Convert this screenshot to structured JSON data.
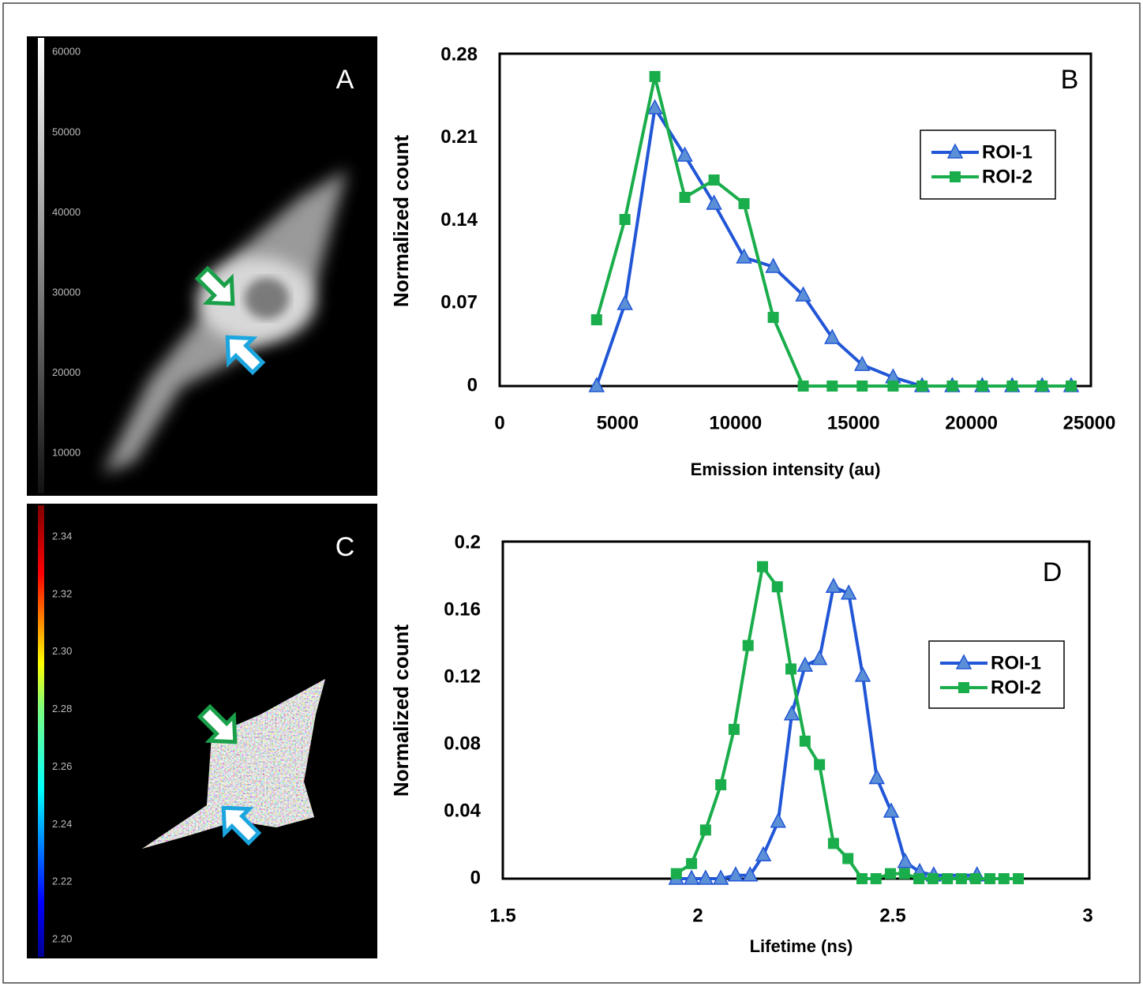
{
  "image_panels": [
    {
      "label": "A",
      "colorbar": {
        "lim": [
          5000,
          61800
        ],
        "ticks": [
          10000,
          20000,
          30000,
          40000,
          50000,
          60000
        ]
      }
    },
    {
      "label": "C",
      "colorbar": {
        "lim": [
          2.194,
          2.351
        ],
        "ticks": [
          {
            "value": 2.2,
            "label": "2.20"
          },
          2.22,
          2.24,
          2.26,
          2.28,
          {
            "value": 2.3,
            "label": "2.30"
          },
          2.32,
          2.34
        ]
      }
    }
  ],
  "chart_data": [
    {
      "type": "line",
      "panel_label": "B",
      "xlabel": "Emission intensity (au)",
      "ylabel": "Normalized count",
      "x": [
        4110,
        5310,
        6580,
        7850,
        9090,
        10360,
        11600,
        12870,
        14100,
        15370,
        16680,
        17910,
        19190,
        20460,
        21730,
        23000,
        24230
      ],
      "series": [
        {
          "name": "ROI-1",
          "color": "#2156d6",
          "marker": "triangle",
          "marker_fill": "#5b8fd6",
          "values": [
            0,
            0.0695,
            0.2352,
            0.1951,
            0.1544,
            0.1089,
            0.1009,
            0.0768,
            0.0408,
            0.018,
            0.0074,
            0,
            0,
            0,
            0,
            0,
            0
          ]
        },
        {
          "name": "ROI-2",
          "color": "#1aad4b",
          "marker": "square",
          "marker_fill": "#1aad4b",
          "values": [
            0.0561,
            0.141,
            0.262,
            0.1597,
            0.1744,
            0.1544,
            0.0581,
            0,
            0,
            0,
            0,
            0,
            0,
            0,
            0,
            0,
            0
          ]
        }
      ],
      "xlim": [
        0,
        25000
      ],
      "ylim": [
        0,
        0.28
      ],
      "xticks": [
        0,
        5000,
        10000,
        15000,
        20000,
        25000
      ],
      "yticks": [
        0,
        0.07,
        0.14,
        0.21,
        0.28
      ],
      "grid": false,
      "legend": "upper right"
    },
    {
      "type": "line",
      "panel_label": "D",
      "xlabel": "Lifetime (ns)",
      "ylabel": "Normalized count",
      "series": [
        {
          "name": "ROI-1",
          "color": "#2156d6",
          "marker": "triangle",
          "marker_fill": "#5b8fd6",
          "x": [
            1.945,
            1.984,
            2.02,
            2.059,
            2.097,
            2.134,
            2.168,
            2.206,
            2.241,
            2.275,
            2.312,
            2.348,
            2.387,
            2.423,
            2.459,
            2.496,
            2.532,
            2.569,
            2.605,
            2.716
          ],
          "values": [
            0,
            0,
            0,
            0,
            0.002,
            0.002,
            0.014,
            0.034,
            0.098,
            0.127,
            0.131,
            0.174,
            0.17,
            0.121,
            0.06,
            0.04,
            0.01,
            0.004,
            0.002,
            0.002
          ]
        },
        {
          "name": "ROI-2",
          "color": "#1aad4b",
          "marker": "square",
          "marker_fill": "#1aad4b",
          "x": [
            1.945,
            1.984,
            2.02,
            2.059,
            2.093,
            2.129,
            2.166,
            2.204,
            2.239,
            2.275,
            2.312,
            2.348,
            2.385,
            2.421,
            2.457,
            2.494,
            2.53,
            2.567,
            2.603,
            2.64,
            2.676,
            2.712,
            2.749,
            2.785,
            2.822
          ],
          "values": [
            0.003,
            0.009,
            0.029,
            0.056,
            0.089,
            0.139,
            0.186,
            0.174,
            0.125,
            0.082,
            0.068,
            0.021,
            0.012,
            0,
            0,
            0.003,
            0.003,
            0,
            0,
            0,
            0,
            0,
            0,
            0,
            0
          ]
        }
      ],
      "xlim": [
        1.5,
        3
      ],
      "ylim": [
        0,
        0.2
      ],
      "xticks": [
        1.5,
        2,
        2.5,
        3
      ],
      "yticks": [
        0,
        0.04,
        0.08,
        0.12,
        0.16,
        0.2
      ],
      "grid": false,
      "legend": "upper right"
    }
  ]
}
